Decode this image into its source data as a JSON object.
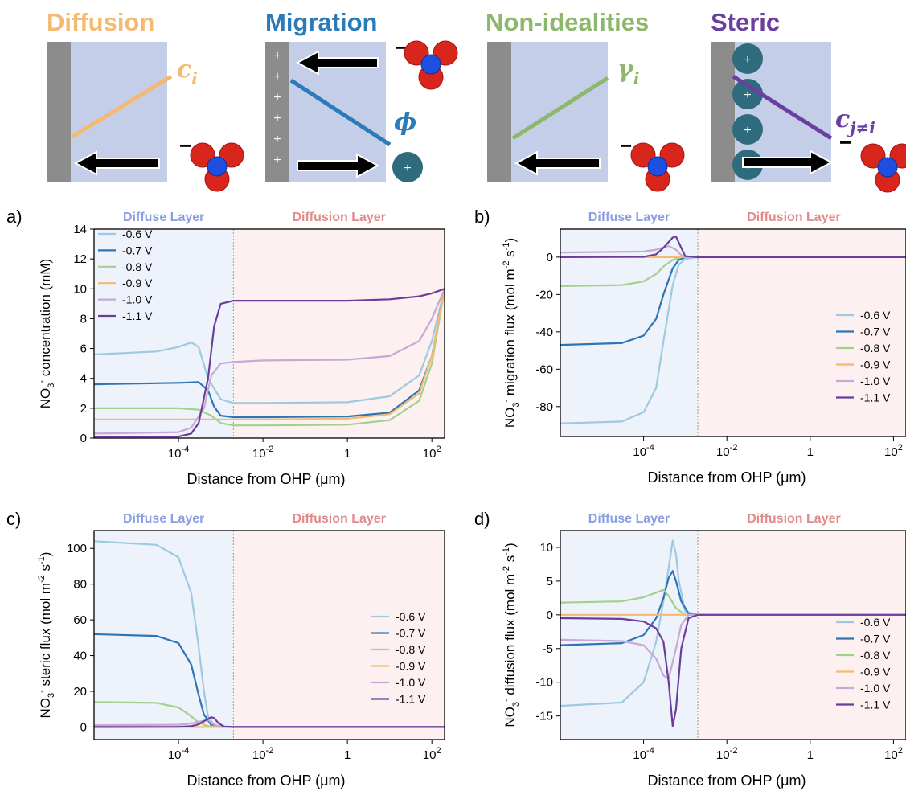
{
  "schematics": [
    {
      "title": "Diffusion",
      "color": "#f5b971",
      "variable": "c",
      "subscript": "i",
      "direction": "left",
      "charges": []
    },
    {
      "title": "Migration",
      "color": "#2b7bb9",
      "variable": "ϕ",
      "subscript": "",
      "direction": "both",
      "charges": [
        "+",
        "+",
        "+",
        "+",
        "+",
        "+"
      ],
      "ion_label": "+"
    },
    {
      "title": "Non-idealities",
      "color": "#8db86b",
      "variable": "γ",
      "subscript": "i",
      "direction": "left",
      "charges": []
    },
    {
      "title": "Steric",
      "color": "#6b3fa0",
      "variable": "c",
      "subscript": "j≠i",
      "direction": "right",
      "charges": [
        "+",
        "+",
        "+",
        "+"
      ]
    }
  ],
  "anion_charge": "−",
  "layers": {
    "diffuse": "Diffuse Layer",
    "diffusion": "Diffusion Layer"
  },
  "series_colors": [
    "#9ecae1",
    "#2e75b6",
    "#a3d18c",
    "#f5b971",
    "#c7a8d6",
    "#6a3d9a"
  ],
  "chart_data": [
    {
      "panel": "a)",
      "type": "line",
      "xscale": "log",
      "xlabel": "Distance from OHP (μm)",
      "ylabel": "NO3- concentration (mM)",
      "ylabel_parts": [
        "NO",
        "3",
        "-",
        " concentration (mM)"
      ],
      "xticks": [
        "10^-4",
        "10^-2",
        "1",
        "10^2"
      ],
      "yticks": [
        0,
        2,
        4,
        6,
        8,
        10,
        12,
        14
      ],
      "ylim": [
        0,
        14
      ],
      "xlim": [
        1e-06,
        200
      ],
      "boundary": 0.002,
      "legend": "top-left",
      "series": [
        {
          "name": "-0.6 V",
          "x": [
            1e-06,
            3e-05,
            0.0001,
            0.0002,
            0.0003,
            0.0005,
            0.001,
            0.002,
            0.01,
            1,
            10,
            50,
            100,
            200
          ],
          "y": [
            5.6,
            5.8,
            6.1,
            6.4,
            6.1,
            4.0,
            2.6,
            2.35,
            2.35,
            2.4,
            2.8,
            4.2,
            6.5,
            10
          ]
        },
        {
          "name": "-0.7 V",
          "x": [
            1e-06,
            0.0001,
            0.0003,
            0.0005,
            0.0007,
            0.001,
            0.002,
            0.01,
            1,
            10,
            50,
            100,
            200
          ],
          "y": [
            3.6,
            3.7,
            3.75,
            3.2,
            2.1,
            1.5,
            1.4,
            1.4,
            1.45,
            1.7,
            3.2,
            5.5,
            10
          ]
        },
        {
          "name": "-0.8 V",
          "x": [
            1e-06,
            0.0001,
            0.0003,
            0.0006,
            0.001,
            0.002,
            0.01,
            1,
            10,
            50,
            100,
            200
          ],
          "y": [
            2.0,
            2.0,
            1.9,
            1.5,
            1.0,
            0.85,
            0.85,
            0.9,
            1.2,
            2.5,
            5.0,
            10
          ]
        },
        {
          "name": "-0.9 V",
          "x": [
            1e-06,
            0.0001,
            0.001,
            0.01,
            1,
            10,
            50,
            100,
            200
          ],
          "y": [
            1.25,
            1.25,
            1.25,
            1.25,
            1.3,
            1.6,
            3.0,
            5.5,
            10
          ]
        },
        {
          "name": "-1.0 V",
          "x": [
            1e-06,
            0.0001,
            0.0002,
            0.0004,
            0.0006,
            0.001,
            0.002,
            0.01,
            1,
            10,
            50,
            100,
            200
          ],
          "y": [
            0.3,
            0.4,
            0.7,
            2.0,
            4.2,
            5.0,
            5.1,
            5.2,
            5.25,
            5.5,
            6.5,
            8.0,
            10
          ]
        },
        {
          "name": "-1.1 V",
          "x": [
            1e-06,
            0.0001,
            0.0002,
            0.0003,
            0.0005,
            0.0007,
            0.001,
            0.002,
            0.01,
            1,
            10,
            50,
            100,
            200
          ],
          "y": [
            0.1,
            0.1,
            0.3,
            1.0,
            4.0,
            7.5,
            9.0,
            9.2,
            9.2,
            9.2,
            9.3,
            9.5,
            9.7,
            10
          ]
        }
      ]
    },
    {
      "panel": "b)",
      "type": "line",
      "xscale": "log",
      "xlabel": "Distance from OHP (μm)",
      "ylabel": "NO3- migration flux (mol m-2 s-1)",
      "ylabel_parts": [
        "NO",
        "3",
        "-",
        " migration flux (mol m",
        "-2",
        " s",
        "-1",
        ")"
      ],
      "xticks": [
        "10^-4",
        "10^-2",
        "1",
        "10^2"
      ],
      "yticks": [
        0,
        -20,
        -40,
        -60,
        -80
      ],
      "ylim": [
        -96,
        15
      ],
      "xlim": [
        1e-06,
        200
      ],
      "boundary": 0.002,
      "legend": "bottom-right",
      "series": [
        {
          "name": "-0.6 V",
          "x": [
            1e-06,
            3e-05,
            0.0001,
            0.0002,
            0.0003,
            0.0005,
            0.0007,
            0.001,
            0.002,
            200
          ],
          "y": [
            -89,
            -88,
            -83,
            -70,
            -45,
            -15,
            -4,
            -1,
            0,
            0
          ]
        },
        {
          "name": "-0.7 V",
          "x": [
            1e-06,
            3e-05,
            0.0001,
            0.0002,
            0.0003,
            0.0005,
            0.0007,
            0.001,
            0.002,
            200
          ],
          "y": [
            -47,
            -46,
            -42,
            -33,
            -20,
            -6,
            -1.5,
            0,
            0,
            0
          ]
        },
        {
          "name": "-0.8 V",
          "x": [
            1e-06,
            3e-05,
            0.0001,
            0.0002,
            0.0003,
            0.0005,
            0.0008,
            0.002,
            200
          ],
          "y": [
            -15.5,
            -15,
            -13,
            -9,
            -5,
            -1.5,
            0,
            0,
            0
          ]
        },
        {
          "name": "-0.9 V",
          "x": [
            1e-06,
            200
          ],
          "y": [
            0,
            0
          ]
        },
        {
          "name": "-1.0 V",
          "x": [
            1e-06,
            0.0001,
            0.0002,
            0.0004,
            0.0006,
            0.0008,
            0.001,
            0.002,
            200
          ],
          "y": [
            2.5,
            3,
            4,
            6,
            4,
            1,
            0,
            0,
            0
          ]
        },
        {
          "name": "-1.1 V",
          "x": [
            1e-06,
            0.0001,
            0.0002,
            0.0003,
            0.0005,
            0.0006,
            0.0008,
            0.001,
            0.002,
            200
          ],
          "y": [
            0,
            0.2,
            1.5,
            5,
            10.5,
            11,
            5,
            0.5,
            0,
            0
          ]
        }
      ]
    },
    {
      "panel": "c)",
      "type": "line",
      "xscale": "log",
      "xlabel": "Distance from OHP (μm)",
      "ylabel": "NO3- steric flux (mol m-2 s-1)",
      "ylabel_parts": [
        "NO",
        "3",
        "-",
        " steric flux (mol m",
        "-2",
        " s",
        "-1",
        ")"
      ],
      "xticks": [
        "10^-4",
        "10^-2",
        "1",
        "10^2"
      ],
      "yticks": [
        0,
        20,
        40,
        60,
        80,
        100
      ],
      "ylim": [
        -7,
        110
      ],
      "xlim": [
        1e-06,
        200
      ],
      "boundary": 0.002,
      "legend": "right",
      "series": [
        {
          "name": "-0.6 V",
          "x": [
            1e-06,
            3e-05,
            0.0001,
            0.0002,
            0.0003,
            0.0004,
            0.0005,
            0.0007,
            0.001,
            0.002,
            200
          ],
          "y": [
            104,
            102,
            95,
            75,
            45,
            20,
            6,
            1,
            0,
            0,
            0
          ]
        },
        {
          "name": "-0.7 V",
          "x": [
            1e-06,
            3e-05,
            0.0001,
            0.0002,
            0.0003,
            0.0004,
            0.0006,
            0.001,
            0.002,
            200
          ],
          "y": [
            52,
            51,
            47,
            35,
            18,
            7,
            1,
            0,
            0,
            0
          ]
        },
        {
          "name": "-0.8 V",
          "x": [
            1e-06,
            3e-05,
            0.0001,
            0.0002,
            0.0003,
            0.0005,
            0.001,
            0.002,
            200
          ],
          "y": [
            14,
            13.5,
            11,
            6,
            2.5,
            0.5,
            0,
            0,
            0
          ]
        },
        {
          "name": "-0.9 V",
          "x": [
            1e-06,
            200
          ],
          "y": [
            0,
            0
          ]
        },
        {
          "name": "-1.0 V",
          "x": [
            1e-06,
            0.0001,
            0.0002,
            0.0003,
            0.0005,
            0.0007,
            0.001,
            0.002,
            200
          ],
          "y": [
            1,
            1.3,
            2,
            3,
            4,
            1.5,
            0,
            0,
            0
          ]
        },
        {
          "name": "-1.1 V",
          "x": [
            1e-06,
            0.0001,
            0.0002,
            0.0003,
            0.0005,
            0.0006,
            0.0007,
            0.0009,
            0.0012,
            0.002,
            200
          ],
          "y": [
            0,
            0.1,
            0.5,
            1.5,
            4.5,
            5.5,
            5,
            2,
            0.3,
            0,
            0
          ]
        }
      ]
    },
    {
      "panel": "d)",
      "type": "line",
      "xscale": "log",
      "xlabel": "Distance from OHP (μm)",
      "ylabel": "NO3- diffusion flux (mol m-2 s-1)",
      "ylabel_parts": [
        "NO",
        "3",
        "-",
        " diffusion flux (mol m",
        "-2",
        " s",
        "-1",
        ")"
      ],
      "xticks": [
        "10^-4",
        "10^-2",
        "1",
        "10^2"
      ],
      "yticks": [
        10,
        5,
        0,
        -5,
        -10,
        -15
      ],
      "ylim": [
        -18.5,
        12.5
      ],
      "xlim": [
        1e-06,
        200
      ],
      "boundary": 0.002,
      "legend": "bottom-right",
      "series": [
        {
          "name": "-0.6 V",
          "x": [
            1e-06,
            3e-05,
            0.0001,
            0.0002,
            0.0003,
            0.0004,
            0.0005,
            0.0006,
            0.0007,
            0.001,
            0.002,
            200
          ],
          "y": [
            -13.5,
            -13,
            -10,
            -4,
            2,
            7,
            11,
            9,
            5,
            0.5,
            0,
            0
          ]
        },
        {
          "name": "-0.7 V",
          "x": [
            1e-06,
            3e-05,
            0.0001,
            0.0002,
            0.0003,
            0.0004,
            0.0005,
            0.0006,
            0.0008,
            0.0012,
            0.002,
            200
          ],
          "y": [
            -4.5,
            -4.2,
            -3,
            -0.5,
            2.5,
            5.5,
            6.5,
            5,
            2,
            0.2,
            0,
            0
          ]
        },
        {
          "name": "-0.8 V",
          "x": [
            1e-06,
            3e-05,
            0.0001,
            0.0002,
            0.0003,
            0.0004,
            0.0006,
            0.001,
            0.002,
            200
          ],
          "y": [
            1.8,
            2,
            2.6,
            3.3,
            3.7,
            2.8,
            1,
            0,
            0,
            0
          ]
        },
        {
          "name": "-0.9 V",
          "x": [
            1e-06,
            200
          ],
          "y": [
            0,
            0
          ]
        },
        {
          "name": "-1.0 V",
          "x": [
            1e-06,
            3e-05,
            0.0001,
            0.0002,
            0.0003,
            0.0004,
            0.0006,
            0.0008,
            0.0012,
            0.002,
            200
          ],
          "y": [
            -3.7,
            -3.9,
            -4.5,
            -6.5,
            -9,
            -9.5,
            -5,
            -1.5,
            0,
            0,
            0
          ]
        },
        {
          "name": "-1.1 V",
          "x": [
            1e-06,
            3e-05,
            0.0001,
            0.0002,
            0.0003,
            0.0004,
            0.0005,
            0.0006,
            0.0008,
            0.0012,
            0.002,
            200
          ],
          "y": [
            -0.5,
            -0.6,
            -1,
            -2,
            -4,
            -10,
            -16.5,
            -14,
            -5,
            -0.5,
            0,
            0
          ]
        }
      ]
    }
  ]
}
